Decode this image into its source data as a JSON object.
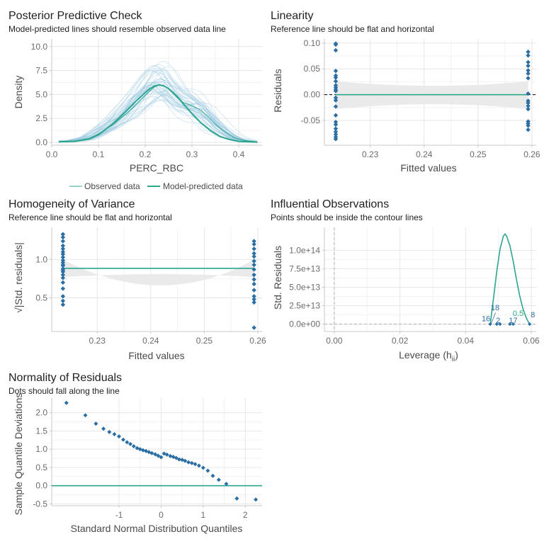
{
  "colors": {
    "teal": "#2ca58d",
    "blue": "#2171b5",
    "point": "#2b6ea4",
    "ribbon": "#e8e8e8",
    "pp_lines": "#9ecae1",
    "contour": "#2ca58d"
  },
  "chart_data": [
    {
      "id": "ppc",
      "type": "line",
      "title": "Posterior Predictive Check",
      "subtitle": "Model-predicted lines should resemble observed data line",
      "xlabel": "PERC_RBC",
      "ylabel": "Density",
      "xlim": [
        0.0,
        0.45
      ],
      "ylim": [
        -0.3,
        10.8
      ],
      "xticks": [
        0.0,
        0.1,
        0.2,
        0.3,
        0.4
      ],
      "xtick_labels": [
        "0.0",
        "0.1",
        "0.2",
        "0.3",
        "0.4"
      ],
      "yticks": [
        0.0,
        2.5,
        5.0,
        7.5,
        10.0
      ],
      "ytick_labels": [
        "0.0",
        "2.5",
        "5.0",
        "7.5",
        "10.0"
      ],
      "legend": {
        "position": "bottom",
        "entries": [
          "Observed data",
          "Model-predicted data"
        ]
      },
      "series": [
        {
          "name": "Observed data",
          "x": [
            0.015,
            0.05,
            0.08,
            0.1,
            0.13,
            0.16,
            0.18,
            0.2,
            0.21,
            0.22,
            0.23,
            0.24,
            0.25,
            0.26,
            0.27,
            0.28,
            0.29,
            0.3,
            0.31,
            0.32,
            0.33,
            0.35,
            0.37,
            0.39,
            0.41,
            0.44
          ],
          "y": [
            0.1,
            0.15,
            0.4,
            0.9,
            1.8,
            3.0,
            3.9,
            4.9,
            5.4,
            5.8,
            6.0,
            5.9,
            5.6,
            5.1,
            4.6,
            4.2,
            4.0,
            3.8,
            3.6,
            3.3,
            2.9,
            1.9,
            1.1,
            0.5,
            0.2,
            0.05
          ]
        },
        {
          "name": "Model-predicted data",
          "x": [
            0.015,
            0.05,
            0.08,
            0.1,
            0.13,
            0.16,
            0.18,
            0.2,
            0.21,
            0.22,
            0.23,
            0.24,
            0.25,
            0.26,
            0.27,
            0.28,
            0.3,
            0.32,
            0.34,
            0.36,
            0.38,
            0.4,
            0.44
          ],
          "y": [
            0.05,
            0.1,
            0.35,
            0.8,
            1.9,
            3.3,
            4.3,
            5.2,
            5.6,
            5.9,
            6.0,
            5.9,
            5.6,
            5.2,
            4.7,
            4.1,
            3.0,
            2.0,
            1.2,
            0.6,
            0.3,
            0.1,
            0.02
          ]
        }
      ]
    },
    {
      "id": "linearity",
      "type": "scatter",
      "title": "Linearity",
      "subtitle": "Reference line should be flat and horizontal",
      "xlabel": "Fitted values",
      "ylabel": "Residuals",
      "xlim": [
        0.2215,
        0.2608
      ],
      "ylim": [
        -0.098,
        0.108
      ],
      "xticks": [
        0.23,
        0.24,
        0.25,
        0.26
      ],
      "xtick_labels": [
        "0.23",
        "0.24",
        "0.25",
        "0.26"
      ],
      "yticks": [
        -0.05,
        0.0,
        0.05,
        0.1
      ],
      "ytick_labels": [
        "-0.05",
        "0.00",
        "0.05",
        "0.10"
      ],
      "reference_line": 0.0,
      "ribbon": [
        -0.028,
        0.026
      ],
      "points": {
        "x": [
          0.2236,
          0.2236,
          0.2236,
          0.2236,
          0.2236,
          0.2236,
          0.2236,
          0.2236,
          0.2236,
          0.2236,
          0.2236,
          0.2236,
          0.2236,
          0.2236,
          0.2236,
          0.2236,
          0.2236,
          0.2236,
          0.2236,
          0.2236,
          0.2236,
          0.2236,
          0.2593,
          0.2593,
          0.2593,
          0.2593,
          0.2593,
          0.2593,
          0.2593,
          0.2593,
          0.2593,
          0.2593,
          0.2593,
          0.2593,
          0.2593,
          0.2593,
          0.2593,
          0.2593
        ],
        "y": [
          0.099,
          0.097,
          0.086,
          0.046,
          0.037,
          0.033,
          0.026,
          0.018,
          0.014,
          0.01,
          0.007,
          -0.006,
          -0.011,
          -0.023,
          -0.04,
          -0.053,
          -0.058,
          -0.066,
          -0.072,
          -0.077,
          -0.082,
          -0.086,
          0.083,
          0.076,
          0.063,
          0.056,
          0.047,
          0.041,
          0.032,
          0.002,
          -0.012,
          -0.016,
          -0.022,
          -0.028,
          -0.052,
          -0.056,
          -0.06,
          -0.068
        ]
      }
    },
    {
      "id": "homogeneity",
      "type": "scatter",
      "title": "Homogeneity of Variance",
      "subtitle": "Reference line should be flat and horizontal",
      "xlabel": "Fitted values",
      "ylabel": "√|Std. residuals|",
      "xlim": [
        0.2215,
        0.2608
      ],
      "ylim": [
        0.06,
        1.42
      ],
      "xticks": [
        0.23,
        0.24,
        0.25,
        0.26
      ],
      "xtick_labels": [
        "0.23",
        "0.24",
        "0.25",
        "0.26"
      ],
      "yticks": [
        0.5,
        1.0
      ],
      "ytick_labels": [
        "0.5",
        "1.0"
      ],
      "reference_line": 0.885,
      "ribbon": [
        0.77,
        1.0
      ],
      "points": {
        "x": [
          0.2236,
          0.2236,
          0.2236,
          0.2236,
          0.2236,
          0.2236,
          0.2236,
          0.2236,
          0.2236,
          0.2236,
          0.2236,
          0.2236,
          0.2236,
          0.2236,
          0.2236,
          0.2236,
          0.2236,
          0.2236,
          0.2236,
          0.2236,
          0.2236,
          0.2236,
          0.2593,
          0.2593,
          0.2593,
          0.2593,
          0.2593,
          0.2593,
          0.2593,
          0.2593,
          0.2593,
          0.2593,
          0.2593,
          0.2593,
          0.2593,
          0.2593,
          0.2593,
          0.2593
        ],
        "y": [
          1.33,
          1.29,
          1.24,
          1.18,
          1.14,
          1.1,
          1.07,
          1.03,
          0.99,
          0.96,
          0.92,
          0.88,
          0.84,
          0.8,
          0.76,
          0.7,
          0.62,
          0.52,
          0.46,
          0.41,
          0.93,
          0.86,
          1.24,
          1.2,
          1.14,
          1.08,
          1.04,
          0.98,
          0.93,
          0.87,
          0.8,
          0.74,
          0.68,
          0.6,
          0.52,
          0.48,
          0.44,
          0.11
        ]
      }
    },
    {
      "id": "influential",
      "type": "scatter",
      "title": "Influential Observations",
      "subtitle": "Points should be inside the contour lines",
      "xlabel": "Leverage (h",
      "xlabel_sub": "ii",
      "xlabel_end": ")",
      "ylabel": "Std. Residuals",
      "xlim": [
        -0.003,
        0.0615
      ],
      "ylim": [
        -10000000000000.0,
        131000000000000.0
      ],
      "xticks": [
        0.0,
        0.02,
        0.04,
        0.06
      ],
      "xtick_labels": [
        "0.00",
        "0.02",
        "0.04",
        "0.06"
      ],
      "yticks": [
        0,
        25000000000000.0,
        50000000000000.0,
        75000000000000.0,
        100000000000000.0
      ],
      "ytick_labels": [
        "0.0e+00",
        "2.5e+13",
        "5.0e+13",
        "7.5e+13",
        "1.0e+14"
      ],
      "contour": {
        "x": [
          0.0475,
          0.0485,
          0.0495,
          0.0505,
          0.0515,
          0.052,
          0.0525,
          0.0535,
          0.0545,
          0.0555,
          0.0565,
          0.0575,
          0.0585,
          0.0595
        ],
        "y": [
          0,
          35000000000000.0,
          72000000000000.0,
          102000000000000.0,
          119000000000000.0,
          122000000000000.0,
          119000000000000.0,
          106000000000000.0,
          85000000000000.0,
          60000000000000.0,
          38000000000000.0,
          20000000000000.0,
          8000000000000.0,
          0
        ]
      },
      "points": {
        "x": [
          0.0475,
          0.0495,
          0.0505,
          0.0535,
          0.0545,
          0.0595
        ],
        "y": [
          0,
          0,
          0,
          0,
          0,
          0
        ]
      },
      "labels": [
        {
          "text": "16",
          "x": 0.0462,
          "y": 4000000000000.0,
          "color": "#2b6ea4"
        },
        {
          "text": "18",
          "x": 0.049,
          "y": 19000000000000.0,
          "color": "#2b6ea4"
        },
        {
          "text": "2",
          "x": 0.0499,
          "y": 1500000000000.0,
          "color": "#2b6ea4"
        },
        {
          "text": "17",
          "x": 0.0545,
          "y": 1500000000000.0,
          "color": "#2b6ea4"
        },
        {
          "text": "0.5",
          "x": 0.056,
          "y": 11000000000000.0,
          "color": "#2ca58d"
        },
        {
          "text": "8",
          "x": 0.0605,
          "y": 9000000000000.0,
          "color": "#2b6ea4"
        }
      ]
    },
    {
      "id": "normality",
      "type": "scatter",
      "title": "Normality of Residuals",
      "subtitle": "Dots should fall along the line",
      "xlabel": "Standard Normal Distribution Quantiles",
      "ylabel": "Sample Quantile Deviations",
      "xlim": [
        -2.6,
        2.4
      ],
      "ylim": [
        -0.55,
        2.4
      ],
      "xticks": [
        -1,
        0,
        1,
        2
      ],
      "xtick_labels": [
        "-1",
        "0",
        "1",
        "2"
      ],
      "yticks": [
        -0.5,
        0.0,
        0.5,
        1.0,
        1.5,
        2.0
      ],
      "ytick_labels": [
        "-0.5",
        "0.0",
        "0.5",
        "1.0",
        "1.5",
        "2.0"
      ],
      "reference_line": 0.0,
      "points": {
        "x": [
          -2.25,
          -1.8,
          -1.55,
          -1.37,
          -1.23,
          -1.11,
          -1.0,
          -0.9,
          -0.81,
          -0.73,
          -0.65,
          -0.57,
          -0.5,
          -0.43,
          -0.36,
          -0.29,
          -0.22,
          -0.14,
          -0.07,
          0.0,
          0.07,
          0.14,
          0.22,
          0.29,
          0.36,
          0.43,
          0.5,
          0.57,
          0.65,
          0.73,
          0.81,
          0.9,
          1.0,
          1.11,
          1.23,
          1.37,
          1.55,
          1.8,
          2.25
        ],
        "y": [
          2.27,
          1.93,
          1.7,
          1.56,
          1.47,
          1.41,
          1.35,
          1.26,
          1.19,
          1.14,
          1.08,
          1.03,
          1.0,
          0.97,
          0.95,
          0.92,
          0.89,
          0.86,
          0.82,
          0.78,
          0.88,
          0.85,
          0.81,
          0.79,
          0.76,
          0.72,
          0.71,
          0.68,
          0.64,
          0.62,
          0.59,
          0.55,
          0.49,
          0.41,
          0.27,
          0.16,
          0.05,
          -0.35,
          -0.38
        ]
      }
    }
  ]
}
